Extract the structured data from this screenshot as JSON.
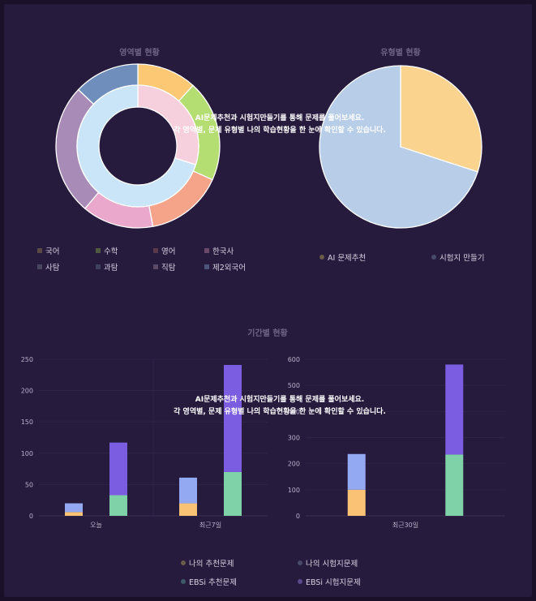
{
  "overlay_line1": "AI문제추천과 시험지만들기를 통해 문제를 풀어보세요.",
  "overlay_line2": "각 영역별, 문제 유형별 나의 학습현황을 한 눈에 확인할 수 있습니다.",
  "legend_colors": {
    "subjects": [
      "#5a4a46",
      "#4f5a3e",
      "#5a3a4a",
      "#6a4a6a",
      "#4a4560",
      "#3f4060",
      "#5a4a6a",
      "#4a5578"
    ],
    "types": [
      "#6a5a4a",
      "#484a6a"
    ],
    "period": [
      "#6a5a4a",
      "#484a6a",
      "#3e5a6a",
      "#5a4a8a"
    ]
  },
  "chart_data": [
    {
      "type": "pie",
      "title": "영역별 현황",
      "variant": "nested-donut",
      "legend": [
        "국어",
        "수학",
        "영어",
        "한국사",
        "사탐",
        "과탐",
        "직탐",
        "제2외국어"
      ],
      "outer": {
        "values": [
          10,
          17,
          13,
          12,
          22,
          11
        ],
        "colors": [
          "#fcc873",
          "#b5de72",
          "#f5a48a",
          "#e9a8cc",
          "#a98bb7",
          "#708ebb"
        ]
      },
      "inner": {
        "values": [
          30,
          70
        ],
        "colors": [
          "#f7d0de",
          "#c9e5f7"
        ]
      }
    },
    {
      "type": "pie",
      "title": "유형별 현황",
      "legend": [
        "AI 문제추천",
        "시험지 만들기"
      ],
      "values": [
        30,
        70
      ],
      "colors": [
        "#fad48e",
        "#b7cde8"
      ]
    },
    {
      "type": "bar",
      "title": "기간별 현황",
      "legend": [
        "나의 추천문제",
        "나의 시험지문제",
        "EBSi 추천문제",
        "EBSi 시험지문제"
      ],
      "charts": [
        {
          "categories": [
            "오늘",
            "최근7일"
          ],
          "ylim": [
            0,
            250
          ],
          "yticks": [
            0,
            50,
            100,
            150,
            200,
            250
          ],
          "stacks": [
            {
              "segments": [
                {
                  "value": 6,
                  "color": "#f9c275"
                },
                {
                  "value": 14,
                  "color": "#93a9f2"
                }
              ]
            },
            {
              "segments": [
                {
                  "value": 33,
                  "color": "#7fd1a8"
                },
                {
                  "value": 84,
                  "color": "#7a5de0"
                }
              ]
            },
            {
              "segments": [
                {
                  "value": 20,
                  "color": "#f9c275"
                },
                {
                  "value": 41,
                  "color": "#93a9f2"
                }
              ]
            },
            {
              "segments": [
                {
                  "value": 70,
                  "color": "#7fd1a8"
                },
                {
                  "value": 171,
                  "color": "#7a5de0"
                }
              ]
            }
          ]
        },
        {
          "categories": [
            "최근30일"
          ],
          "ylim": [
            0,
            600
          ],
          "yticks": [
            0,
            100,
            200,
            300,
            400,
            500,
            600
          ],
          "stacks": [
            {
              "segments": [
                {
                  "value": 100,
                  "color": "#f9c275"
                },
                {
                  "value": 137,
                  "color": "#93a9f2"
                }
              ]
            },
            {
              "segments": [
                {
                  "value": 235,
                  "color": "#7fd1a8"
                },
                {
                  "value": 345,
                  "color": "#7a5de0"
                }
              ]
            }
          ]
        }
      ]
    }
  ]
}
